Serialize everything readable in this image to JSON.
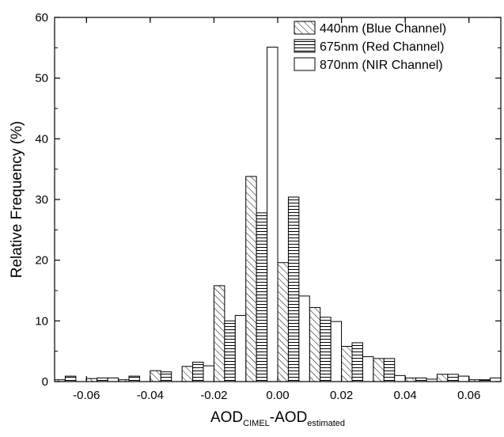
{
  "chart_data": {
    "type": "bar",
    "title": "",
    "xlabel": "AOD",
    "xlabel_sub1": "CIMEL",
    "xlabel_mid": "-AOD",
    "xlabel_sub2": "estimated",
    "ylabel": "Relative Frequency (%)",
    "xlim": [
      -0.07,
      0.07
    ],
    "ylim": [
      0,
      60
    ],
    "x_ticks": [
      -0.06,
      -0.04,
      -0.02,
      0.0,
      0.02,
      0.04,
      0.06
    ],
    "x_tick_labels": [
      "-0.06",
      "-0.04",
      "-0.02",
      "0.00",
      "0.02",
      "0.04",
      "0.06"
    ],
    "y_ticks": [
      0,
      10,
      20,
      30,
      40,
      50,
      60
    ],
    "y_tick_labels": [
      "0",
      "10",
      "20",
      "30",
      "40",
      "50",
      "60"
    ],
    "bin_width": 0.01,
    "grid": false,
    "legend_position": "top-right",
    "x": [
      -0.065,
      -0.055,
      -0.045,
      -0.035,
      -0.025,
      -0.015,
      -0.005,
      0.005,
      0.015,
      0.025,
      0.035,
      0.045,
      0.055,
      0.065
    ],
    "series": [
      {
        "name": "440nm (Blue Channel)",
        "pattern": "diagonal",
        "values": [
          0.3,
          0.5,
          0.3,
          1.8,
          2.5,
          15.8,
          33.8,
          19.6,
          12.2,
          5.8,
          3.8,
          0.6,
          1.2,
          0.3
        ]
      },
      {
        "name": "675nm (Red Channel)",
        "pattern": "horizontal",
        "values": [
          0.9,
          0.6,
          0.9,
          1.6,
          3.2,
          10.0,
          27.8,
          30.4,
          10.6,
          6.4,
          3.8,
          0.6,
          1.2,
          0.3
        ]
      },
      {
        "name": "870nm (NIR Channel)",
        "pattern": "none",
        "values": [
          0.0,
          0.6,
          0.0,
          0.0,
          2.6,
          10.9,
          55.1,
          14.1,
          9.9,
          4.1,
          1.0,
          0.4,
          0.9,
          0.6
        ]
      }
    ]
  }
}
